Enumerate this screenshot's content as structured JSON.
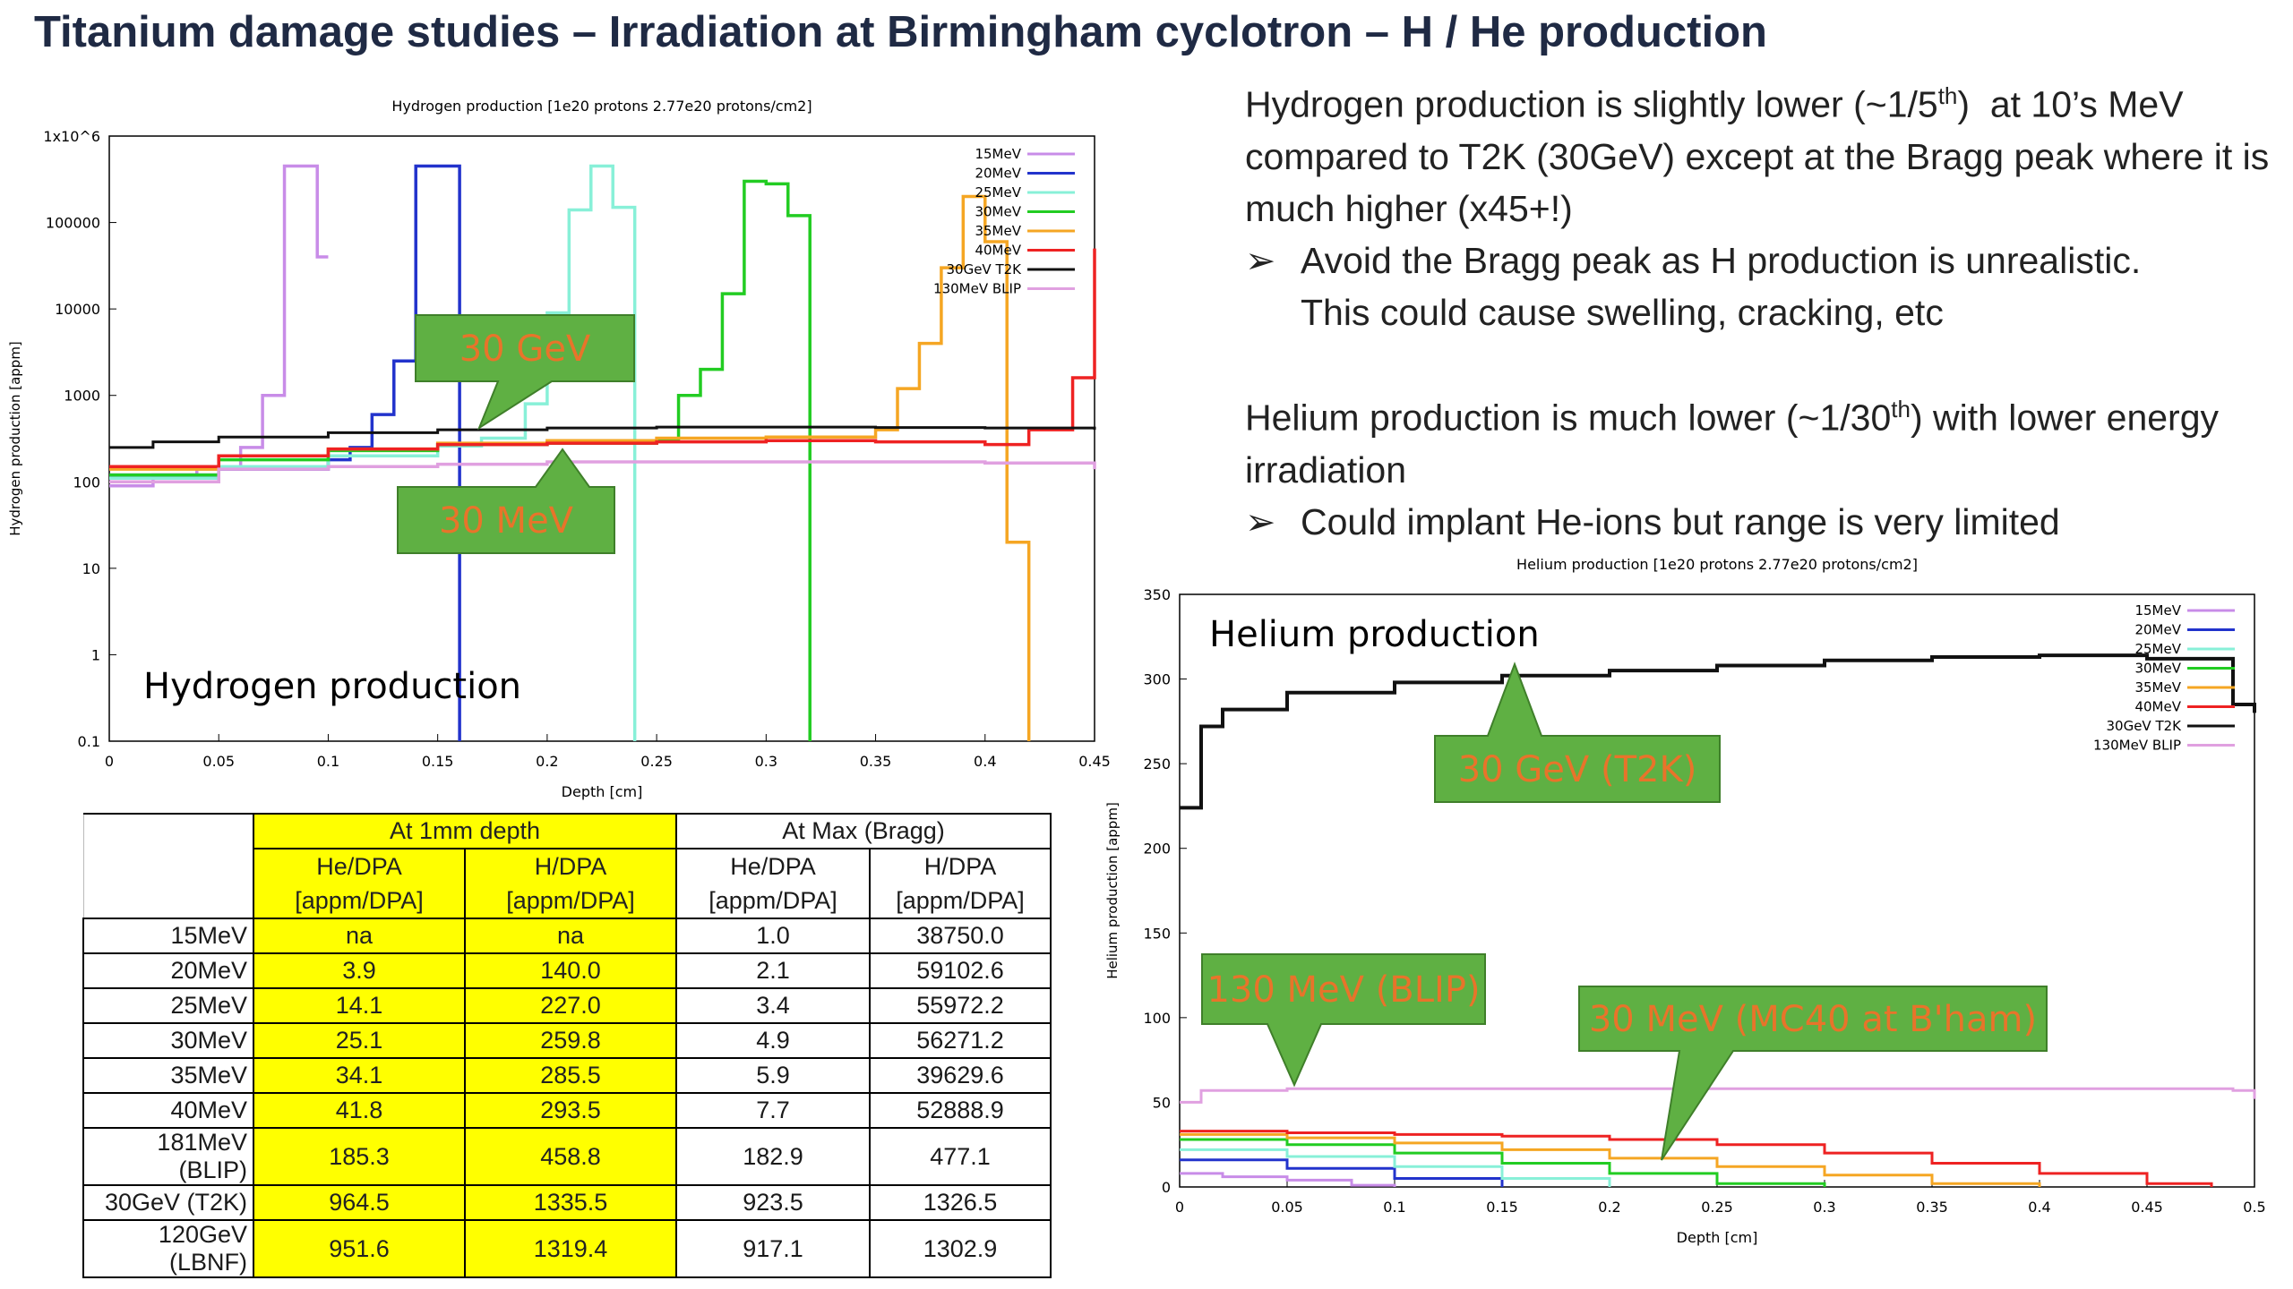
{
  "page_title": "Titanium damage studies – Irradiation at Birmingham cyclotron – H / He production",
  "text": {
    "h_para": "Hydrogen production is slightly lower (~1/5th)  at 10's MeV compared to T2K (30GeV) except at the Bragg peak where it is much higher (x45+!)",
    "h_bullet_1": "Avoid the Bragg peak as H production is unrealistic.",
    "h_bullet_2": "This could cause swelling, cracking, etc",
    "he_para": "Helium production is much lower (~1/30th) with lower energy irradiation",
    "he_bullet": "Could implant He-ions but range is very limited",
    "bullet_glyph": "➢"
  },
  "colors": {
    "15MeV": "#c88ce8",
    "20MeV": "#2233cc",
    "25MeV": "#88f0d8",
    "30MeV": "#22cc22",
    "35MeV": "#f5a623",
    "40MeV": "#ee2222",
    "30GeV T2K": "#111111",
    "130MeV BLIP": "#e0a0e0",
    "callout_fill": "#5fb043",
    "callout_text": "#e8742a",
    "highlight": "#ffff00"
  },
  "chart_data": [
    {
      "id": "hydrogen",
      "type": "line",
      "title": "Hydrogen production [1e20 protons 2.77e20 protons/cm2]",
      "inner_label": "Hydrogen production",
      "xlabel": "Depth [cm]",
      "ylabel": "Hydrogen production [appm]",
      "xlim": [
        0,
        0.45
      ],
      "ylim": [
        0.1,
        1000000
      ],
      "yscale": "log",
      "xticks": [
        "0",
        "0.05",
        "0.1",
        "0.15",
        "0.2",
        "0.25",
        "0.3",
        "0.35",
        "0.4",
        "0.45"
      ],
      "yticks": [
        "0.1",
        "1",
        "10",
        "100",
        "1000",
        "10000",
        "100000",
        "1x10^6"
      ],
      "legend_position": "top-right",
      "series": [
        {
          "name": "15MeV",
          "x": [
            0,
            0.02,
            0.04,
            0.06,
            0.07,
            0.08,
            0.09,
            0.095,
            0.1
          ],
          "y": [
            90,
            120,
            140,
            250,
            1000,
            450000,
            450000,
            40000,
            40000
          ]
        },
        {
          "name": "20MeV",
          "x": [
            0,
            0.05,
            0.1,
            0.11,
            0.12,
            0.13,
            0.14,
            0.15,
            0.16
          ],
          "y": [
            120,
            140,
            180,
            250,
            600,
            2500,
            450000,
            450000,
            0.1
          ]
        },
        {
          "name": "25MeV",
          "x": [
            0,
            0.05,
            0.1,
            0.15,
            0.17,
            0.19,
            0.2,
            0.21,
            0.22,
            0.23,
            0.24
          ],
          "y": [
            110,
            150,
            200,
            260,
            320,
            800,
            9000,
            140000,
            450000,
            150000,
            0.1
          ]
        },
        {
          "name": "30MeV",
          "x": [
            0,
            0.05,
            0.1,
            0.15,
            0.2,
            0.25,
            0.26,
            0.27,
            0.28,
            0.29,
            0.3,
            0.31,
            0.32
          ],
          "y": [
            120,
            180,
            230,
            270,
            280,
            300,
            1000,
            2000,
            15000,
            300000,
            280000,
            120000,
            0.1
          ]
        },
        {
          "name": "35MeV",
          "x": [
            0,
            0.05,
            0.1,
            0.15,
            0.2,
            0.25,
            0.3,
            0.35,
            0.36,
            0.37,
            0.38,
            0.39,
            0.4,
            0.41,
            0.42
          ],
          "y": [
            140,
            200,
            240,
            280,
            300,
            320,
            330,
            400,
            1200,
            4000,
            30000,
            200000,
            60000,
            20,
            0.1
          ]
        },
        {
          "name": "40MeV",
          "x": [
            0,
            0.05,
            0.1,
            0.15,
            0.2,
            0.25,
            0.3,
            0.35,
            0.4,
            0.42,
            0.44,
            0.45
          ],
          "y": [
            150,
            200,
            240,
            270,
            280,
            290,
            300,
            290,
            270,
            400,
            1600,
            50000
          ]
        },
        {
          "name": "30GeV T2K",
          "x": [
            0,
            0.02,
            0.05,
            0.1,
            0.15,
            0.2,
            0.25,
            0.3,
            0.35,
            0.4,
            0.45
          ],
          "y": [
            250,
            290,
            330,
            370,
            400,
            420,
            430,
            430,
            425,
            420,
            400
          ]
        },
        {
          "name": "130MeV BLIP",
          "x": [
            0,
            0.05,
            0.1,
            0.15,
            0.2,
            0.25,
            0.3,
            0.35,
            0.4,
            0.45
          ],
          "y": [
            100,
            140,
            150,
            160,
            170,
            170,
            170,
            170,
            165,
            140
          ]
        }
      ],
      "annotations": [
        "30 GeV",
        "30 MeV"
      ]
    },
    {
      "id": "helium",
      "type": "line",
      "title": "Helium production [1e20 protons 2.77e20 protons/cm2]",
      "inner_label": "Helium production",
      "xlabel": "Depth [cm]",
      "ylabel": "Helium production [appm]",
      "xlim": [
        0,
        0.5
      ],
      "ylim": [
        0,
        350
      ],
      "xticks": [
        "0",
        "0.05",
        "0.1",
        "0.15",
        "0.2",
        "0.25",
        "0.3",
        "0.35",
        "0.4",
        "0.45",
        "0.5"
      ],
      "yticks": [
        "0",
        "50",
        "100",
        "150",
        "200",
        "250",
        "300",
        "350"
      ],
      "legend_position": "top-right",
      "series": [
        {
          "name": "15MeV",
          "x": [
            0,
            0.02,
            0.05,
            0.08,
            0.1
          ],
          "y": [
            8,
            6,
            4,
            1,
            0
          ]
        },
        {
          "name": "20MeV",
          "x": [
            0,
            0.05,
            0.1,
            0.15
          ],
          "y": [
            16,
            11,
            5,
            0
          ]
        },
        {
          "name": "25MeV",
          "x": [
            0,
            0.05,
            0.1,
            0.15,
            0.2
          ],
          "y": [
            22,
            18,
            12,
            5,
            0
          ]
        },
        {
          "name": "30MeV",
          "x": [
            0,
            0.05,
            0.1,
            0.15,
            0.2,
            0.25,
            0.3
          ],
          "y": [
            28,
            25,
            20,
            14,
            8,
            2,
            0
          ]
        },
        {
          "name": "35MeV",
          "x": [
            0,
            0.05,
            0.1,
            0.15,
            0.2,
            0.25,
            0.3,
            0.35,
            0.4
          ],
          "y": [
            31,
            29,
            26,
            22,
            17,
            12,
            7,
            2,
            0
          ]
        },
        {
          "name": "40MeV",
          "x": [
            0,
            0.05,
            0.1,
            0.15,
            0.2,
            0.25,
            0.3,
            0.35,
            0.4,
            0.45,
            0.48
          ],
          "y": [
            33,
            32,
            31,
            30,
            28,
            25,
            20,
            14,
            8,
            2,
            0
          ]
        },
        {
          "name": "30GeV T2K",
          "x": [
            0,
            0.01,
            0.02,
            0.05,
            0.1,
            0.15,
            0.2,
            0.25,
            0.3,
            0.35,
            0.4,
            0.45,
            0.49,
            0.5
          ],
          "y": [
            224,
            272,
            282,
            292,
            298,
            302,
            305,
            308,
            311,
            313,
            314,
            312,
            285,
            280
          ]
        },
        {
          "name": "130MeV BLIP",
          "x": [
            0,
            0.01,
            0.05,
            0.1,
            0.2,
            0.3,
            0.4,
            0.49,
            0.5
          ],
          "y": [
            50,
            57,
            58,
            58,
            58,
            58,
            58,
            57,
            52
          ]
        }
      ],
      "annotations": [
        "30 GeV (T2K)",
        "130  MeV (BLIP)",
        "30 MeV (MC40 at B'ham)"
      ]
    }
  ],
  "table": {
    "group_headers": [
      "At 1mm depth",
      "At Max (Bragg)"
    ],
    "col_headers": [
      "He/DPA",
      "H/DPA",
      "He/DPA",
      "H/DPA"
    ],
    "col_units": [
      "[appm/DPA]",
      "[appm/DPA]",
      "[appm/DPA]",
      "[appm/DPA]"
    ],
    "rows": [
      {
        "label": "15MeV",
        "v": [
          "na",
          "na",
          "1.0",
          "38750.0"
        ]
      },
      {
        "label": "20MeV",
        "v": [
          "3.9",
          "140.0",
          "2.1",
          "59102.6"
        ]
      },
      {
        "label": "25MeV",
        "v": [
          "14.1",
          "227.0",
          "3.4",
          "55972.2"
        ]
      },
      {
        "label": "30MeV",
        "v": [
          "25.1",
          "259.8",
          "4.9",
          "56271.2"
        ]
      },
      {
        "label": "35MeV",
        "v": [
          "34.1",
          "285.5",
          "5.9",
          "39629.6"
        ]
      },
      {
        "label": "40MeV",
        "v": [
          "41.8",
          "293.5",
          "7.7",
          "52888.9"
        ]
      },
      {
        "label": "181MeV (BLIP)",
        "v": [
          "185.3",
          "458.8",
          "182.9",
          "477.1"
        ]
      },
      {
        "label": "30GeV (T2K)",
        "v": [
          "964.5",
          "1335.5",
          "923.5",
          "1326.5"
        ]
      },
      {
        "label": "120GeV (LBNF)",
        "v": [
          "951.6",
          "1319.4",
          "917.1",
          "1302.9"
        ]
      }
    ]
  }
}
